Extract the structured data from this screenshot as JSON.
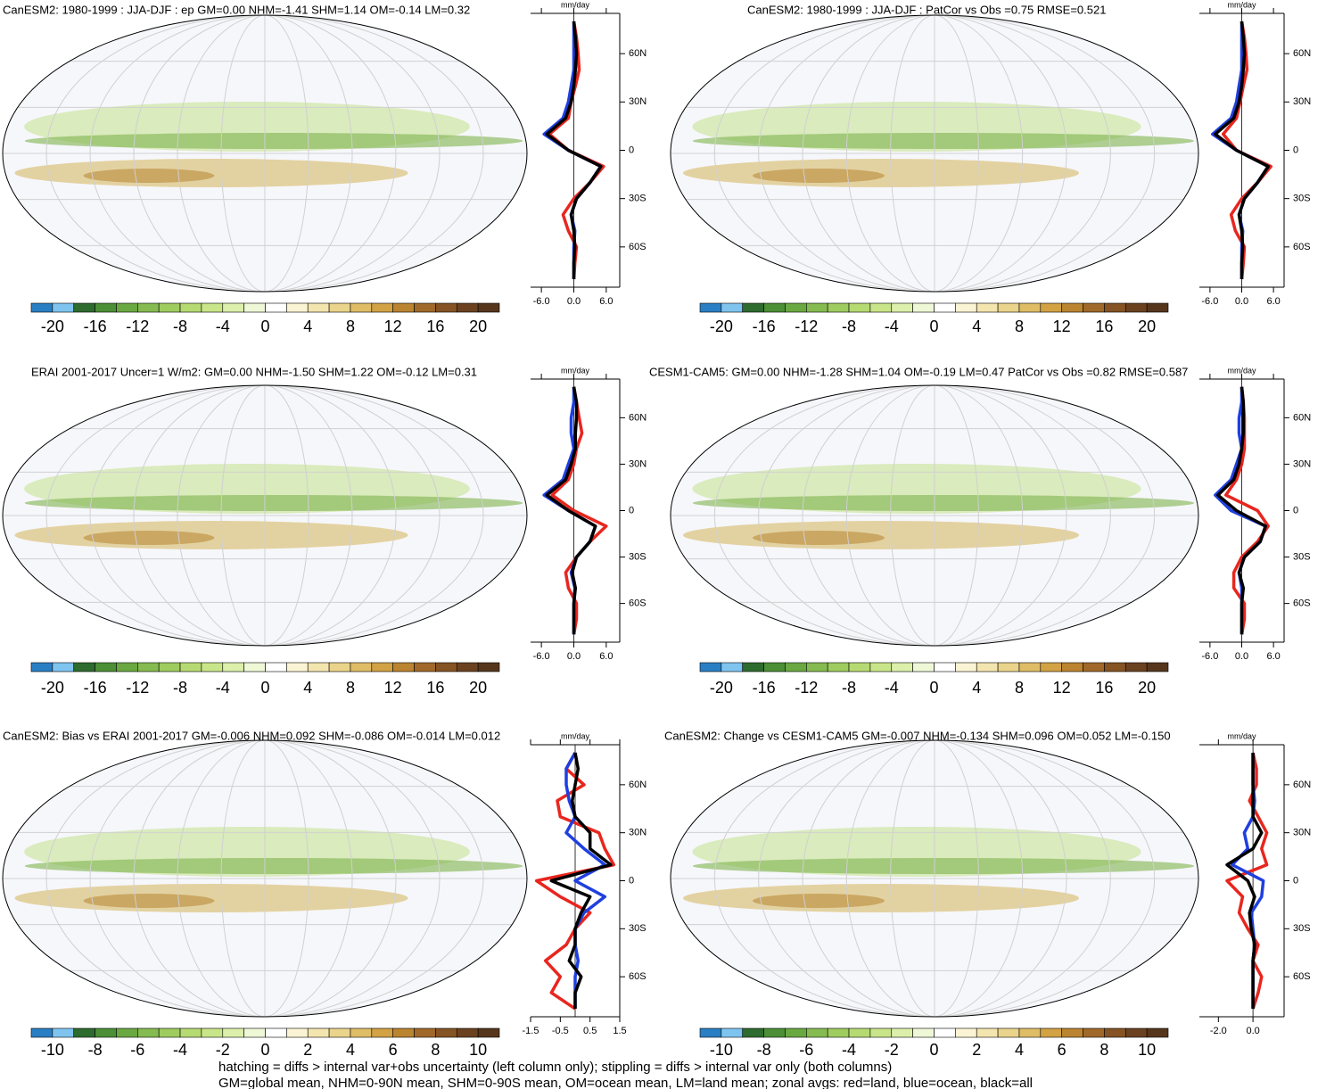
{
  "chart_data": [
    {
      "type": "map-zonal",
      "title": "CanESM2: 1980-1999 : JJA-DJF : ep GM=0.00 NHM=-1.41 SHM=1.14 OM=-0.14 LM=0.32",
      "unit": "mm/day",
      "lat": [
        -80,
        -70,
        -60,
        -50,
        -40,
        -30,
        -20,
        -10,
        0,
        10,
        20,
        30,
        40,
        50,
        60,
        70,
        80
      ],
      "xlim": [
        -8,
        8.5
      ],
      "ylim": [
        -85,
        85
      ],
      "xticks": [
        {
          "value": -6,
          "label": "-6.0"
        },
        {
          "value": 0,
          "label": "0.0"
        },
        {
          "value": 6,
          "label": "6.0"
        }
      ],
      "yticks": [
        {
          "value": -60,
          "label": "60S"
        },
        {
          "value": -30,
          "label": "30S"
        },
        0,
        {
          "value": 30,
          "label": "30N"
        },
        {
          "value": 60,
          "label": "60N"
        }
      ],
      "series": [
        {
          "color": "#e8261e",
          "values": [
            0,
            0.2,
            0.5,
            -1,
            -2,
            0,
            3,
            5.5,
            -1,
            -4.5,
            -1,
            -0.5,
            0.3,
            1,
            0.8,
            0.5,
            0
          ]
        },
        {
          "color": "#1f3fe0",
          "values": [
            0,
            0,
            0,
            0.2,
            -0.5,
            0.5,
            3,
            5,
            -1,
            -5.5,
            -2,
            -1,
            -0.5,
            0,
            0,
            0,
            0
          ]
        },
        {
          "color": "#000000",
          "values": [
            0,
            0,
            0.2,
            0,
            -0.5,
            0.5,
            3,
            5,
            -1,
            -5,
            -1.5,
            -0.5,
            0,
            0.3,
            0.5,
            0.3,
            0
          ]
        }
      ],
      "clim": [
        -22,
        22
      ],
      "cticks": [
        -20,
        -16,
        -12,
        -8,
        -4,
        0,
        4,
        8,
        12,
        16,
        20
      ],
      "colors": [
        "#2a7fc4",
        "#7fc4ef",
        "#2e6b2e",
        "#4c8f36",
        "#6aa842",
        "#85bb50",
        "#9fcc5f",
        "#b6da72",
        "#c9e58a",
        "#dcefab",
        "#eef7d6",
        "#ffffff",
        "#fbf4d4",
        "#f3e5ae",
        "#ead38a",
        "#dfbc66",
        "#d2a244",
        "#bb8430",
        "#a0692a",
        "#855324",
        "#6b4220",
        "#55361c"
      ]
    },
    {
      "type": "map-zonal",
      "title": "CanESM2: 1980-1999 : JJA-DJF : PatCor vs Obs =0.75 RMSE=0.521",
      "unit": "mm/day",
      "lat": [
        -80,
        -70,
        -60,
        -50,
        -40,
        -30,
        -20,
        -10,
        0,
        10,
        20,
        30,
        40,
        50,
        60,
        70,
        80
      ],
      "xlim": [
        -8,
        8
      ],
      "ylim": [
        -85,
        85
      ],
      "xticks": [
        {
          "value": -6,
          "label": "-6.0"
        },
        {
          "value": 0,
          "label": "0.0"
        },
        {
          "value": 6,
          "label": "6.0"
        }
      ],
      "yticks": [
        {
          "value": -60,
          "label": "60S"
        },
        {
          "value": -30,
          "label": "30S"
        },
        0,
        {
          "value": 30,
          "label": "30N"
        },
        {
          "value": 60,
          "label": "60N"
        }
      ],
      "series": [
        {
          "color": "#e8261e",
          "values": [
            0,
            0.3,
            0.5,
            -1.2,
            -2,
            0,
            3,
            5.5,
            -1,
            -3.5,
            -1,
            -0.3,
            0.3,
            1,
            0.8,
            0.5,
            0
          ]
        },
        {
          "color": "#1f3fe0",
          "values": [
            0,
            0,
            0,
            0.2,
            -0.5,
            0.5,
            3,
            5,
            -1,
            -5.5,
            -2,
            -1,
            -0.5,
            0,
            0,
            0,
            0
          ]
        },
        {
          "color": "#000000",
          "values": [
            0,
            0,
            0.2,
            0,
            -0.5,
            0.5,
            3,
            5,
            -1,
            -5,
            -1.5,
            -0.5,
            0,
            0.3,
            0.5,
            0.3,
            0
          ]
        }
      ],
      "clim": [
        -22,
        22
      ],
      "cticks": [
        -20,
        -16,
        -12,
        -8,
        -4,
        0,
        4,
        8,
        12,
        16,
        20
      ],
      "colors": [
        "#2a7fc4",
        "#7fc4ef",
        "#2e6b2e",
        "#4c8f36",
        "#6aa842",
        "#85bb50",
        "#9fcc5f",
        "#b6da72",
        "#c9e58a",
        "#dcefab",
        "#eef7d6",
        "#ffffff",
        "#fbf4d4",
        "#f3e5ae",
        "#ead38a",
        "#dfbc66",
        "#d2a244",
        "#bb8430",
        "#a0692a",
        "#855324",
        "#6b4220",
        "#55361c"
      ]
    },
    {
      "type": "map-zonal",
      "title": "ERAI 2001-2017 Uncer=1 W/m2: GM=0.00 NHM=-1.50 SHM=1.22 OM=-0.12 LM=0.31",
      "unit": "mm/day",
      "lat": [
        -80,
        -70,
        -60,
        -50,
        -40,
        -30,
        -20,
        -10,
        0,
        10,
        20,
        30,
        40,
        50,
        60,
        70,
        80
      ],
      "xlim": [
        -8,
        8.5
      ],
      "ylim": [
        -85,
        85
      ],
      "xticks": [
        {
          "value": -6,
          "label": "-6.0"
        },
        {
          "value": 0,
          "label": "0.0"
        },
        {
          "value": 6,
          "label": "6.0"
        }
      ],
      "yticks": [
        {
          "value": -60,
          "label": "60S"
        },
        {
          "value": -30,
          "label": "30S"
        },
        0,
        {
          "value": 30,
          "label": "30N"
        },
        {
          "value": 60,
          "label": "60N"
        }
      ],
      "series": [
        {
          "color": "#e8261e",
          "values": [
            0,
            0.5,
            0.5,
            -1,
            -1.5,
            0.5,
            3,
            6,
            0,
            -4,
            -1,
            0,
            0.5,
            1.5,
            1,
            0.5,
            0
          ]
        },
        {
          "color": "#1f3fe0",
          "values": [
            0,
            0,
            0,
            0.2,
            -0.5,
            0.5,
            3,
            4,
            -1,
            -5.5,
            -2,
            -1,
            0,
            -0.5,
            -0.5,
            0,
            0
          ]
        },
        {
          "color": "#000000",
          "values": [
            0,
            0,
            0,
            0.3,
            -0.3,
            0.5,
            3,
            4,
            -1,
            -5,
            -1.5,
            -0.5,
            0.3,
            0.3,
            0.5,
            0.5,
            0
          ]
        }
      ],
      "clim": [
        -22,
        22
      ],
      "cticks": [
        -20,
        -16,
        -12,
        -8,
        -4,
        0,
        4,
        8,
        12,
        16,
        20
      ],
      "colors": [
        "#2a7fc4",
        "#7fc4ef",
        "#2e6b2e",
        "#4c8f36",
        "#6aa842",
        "#85bb50",
        "#9fcc5f",
        "#b6da72",
        "#c9e58a",
        "#dcefab",
        "#eef7d6",
        "#ffffff",
        "#fbf4d4",
        "#f3e5ae",
        "#ead38a",
        "#dfbc66",
        "#d2a244",
        "#bb8430",
        "#a0692a",
        "#855324",
        "#6b4220",
        "#55361c"
      ]
    },
    {
      "type": "map-zonal",
      "title": "CESM1-CAM5: GM=0.00 NHM=-1.28 SHM=1.04 OM=-0.19 LM=0.47 PatCor vs Obs =0.82 RMSE=0.587",
      "unit": "mm/day",
      "lat": [
        -80,
        -70,
        -60,
        -50,
        -40,
        -30,
        -20,
        -10,
        0,
        10,
        20,
        30,
        40,
        50,
        60,
        70,
        80
      ],
      "xlim": [
        -8,
        8
      ],
      "ylim": [
        -85,
        85
      ],
      "xticks": [
        {
          "value": -6,
          "label": "-6.0"
        },
        {
          "value": 0,
          "label": "0.0"
        },
        {
          "value": 6,
          "label": "6.0"
        }
      ],
      "yticks": [
        {
          "value": -60,
          "label": "60S"
        },
        {
          "value": -30,
          "label": "30S"
        },
        0,
        {
          "value": 30,
          "label": "30N"
        },
        {
          "value": 60,
          "label": "60N"
        }
      ],
      "series": [
        {
          "color": "#e8261e",
          "values": [
            0,
            0.5,
            0.5,
            -1.5,
            -1.5,
            0,
            3,
            5,
            3,
            -3,
            -1,
            0,
            0.5,
            0.5,
            0.5,
            0.3,
            0
          ]
        },
        {
          "color": "#1f3fe0",
          "values": [
            0,
            0,
            0,
            0,
            -0.5,
            0.5,
            3.5,
            4.5,
            -2,
            -5,
            -2,
            -1,
            0,
            -0.5,
            -0.5,
            0,
            0
          ]
        },
        {
          "color": "#000000",
          "values": [
            0,
            0,
            0,
            0.3,
            -0.5,
            0.5,
            3.5,
            4.5,
            -1,
            -4.5,
            -1.5,
            -0.5,
            0,
            0.3,
            0.3,
            0.3,
            0
          ]
        }
      ],
      "clim": [
        -22,
        22
      ],
      "cticks": [
        -20,
        -16,
        -12,
        -8,
        -4,
        0,
        4,
        8,
        12,
        16,
        20
      ],
      "colors": [
        "#2a7fc4",
        "#7fc4ef",
        "#2e6b2e",
        "#4c8f36",
        "#6aa842",
        "#85bb50",
        "#9fcc5f",
        "#b6da72",
        "#c9e58a",
        "#dcefab",
        "#eef7d6",
        "#ffffff",
        "#fbf4d4",
        "#f3e5ae",
        "#ead38a",
        "#dfbc66",
        "#d2a244",
        "#bb8430",
        "#a0692a",
        "#855324",
        "#6b4220",
        "#55361c"
      ]
    },
    {
      "type": "map-zonal",
      "title": "CanESM2: Bias vs ERAI 2001-2017 GM=-0.006 NHM=0.092 SHM=-0.086 OM=-0.014 LM=0.012",
      "unit": "mm/day",
      "lat": [
        -80,
        -70,
        -60,
        -50,
        -40,
        -30,
        -20,
        -10,
        0,
        10,
        20,
        30,
        40,
        50,
        60,
        70,
        80
      ],
      "xlim": [
        -1.5,
        1.5
      ],
      "ylim": [
        -85,
        85
      ],
      "xticks": [
        -1.5,
        -0.5,
        0.5,
        1.5
      ],
      "yticks": [
        {
          "value": -60,
          "label": "60S"
        },
        {
          "value": -30,
          "label": "30S"
        },
        0,
        {
          "value": 30,
          "label": "30N"
        },
        {
          "value": 60,
          "label": "60N"
        }
      ],
      "series": [
        {
          "color": "#e8261e",
          "values": [
            0,
            -0.8,
            -0.5,
            -1,
            -0.3,
            0,
            0.5,
            -0.5,
            -1.3,
            1.3,
            1,
            0.8,
            -0.5,
            -0.6,
            0.3,
            -0.3,
            0
          ]
        },
        {
          "color": "#1f3fe0",
          "values": [
            0,
            0,
            0,
            0.1,
            0,
            0,
            0.3,
            1,
            0,
            1,
            0.3,
            -0.3,
            0,
            -0.2,
            -0.3,
            -0.3,
            0
          ]
        },
        {
          "color": "#000000",
          "values": [
            0,
            0,
            0.2,
            -0.2,
            0,
            0,
            0.2,
            0.5,
            -0.8,
            1.2,
            0.5,
            0.5,
            0,
            -0.1,
            0,
            0.1,
            0
          ]
        }
      ],
      "clim": [
        -11,
        11
      ],
      "cticks": [
        -10,
        -8,
        -6,
        -4,
        -2,
        0,
        2,
        4,
        6,
        8,
        10
      ],
      "colors": [
        "#2a7fc4",
        "#7fc4ef",
        "#2e6b2e",
        "#4c8f36",
        "#6aa842",
        "#85bb50",
        "#9fcc5f",
        "#b6da72",
        "#c9e58a",
        "#dcefab",
        "#eef7d6",
        "#ffffff",
        "#fbf4d4",
        "#f3e5ae",
        "#ead38a",
        "#dfbc66",
        "#d2a244",
        "#bb8430",
        "#a0692a",
        "#855324",
        "#6b4220",
        "#55361c"
      ]
    },
    {
      "type": "map-zonal",
      "title": "CanESM2: Change vs CESM1-CAM5 GM=-0.007 NHM=-0.134 SHM=0.096 OM=0.052 LM=-0.150",
      "unit": "mm/day",
      "lat": [
        -80,
        -70,
        -60,
        -50,
        -40,
        -30,
        -20,
        -10,
        0,
        10,
        20,
        30,
        40,
        50,
        60,
        70,
        80
      ],
      "xlim": [
        -3.1,
        1.8
      ],
      "ylim": [
        -85,
        85
      ],
      "xticks": [
        {
          "value": -2,
          "label": "-2.0"
        },
        {
          "value": 0,
          "label": "0.0"
        }
      ],
      "yticks": [
        {
          "value": -60,
          "label": "60S"
        },
        {
          "value": -30,
          "label": "30S"
        },
        0,
        {
          "value": 30,
          "label": "30N"
        },
        {
          "value": 60,
          "label": "60N"
        }
      ],
      "series": [
        {
          "color": "#e8261e",
          "values": [
            0,
            0.3,
            0.5,
            0,
            0.3,
            -0.3,
            -0.8,
            -0.6,
            -1.5,
            0.8,
            0.5,
            0.8,
            0.3,
            -0.2,
            0.2,
            0.2,
            0
          ]
        },
        {
          "color": "#1f3fe0",
          "values": [
            0,
            0,
            0,
            0,
            0.1,
            0,
            -0.1,
            0.5,
            0.6,
            -1.2,
            -0.3,
            -0.5,
            0,
            0.1,
            0,
            0,
            0
          ]
        },
        {
          "color": "#000000",
          "values": [
            0,
            0,
            0,
            0,
            0.1,
            -0.1,
            -0.2,
            0.1,
            -0.3,
            -1.5,
            0,
            0.5,
            0,
            0,
            0,
            0,
            0
          ]
        }
      ],
      "clim": [
        -11,
        11
      ],
      "cticks": [
        -10,
        -8,
        -6,
        -4,
        -2,
        0,
        2,
        4,
        6,
        8,
        10
      ],
      "colors": [
        "#2a7fc4",
        "#7fc4ef",
        "#2e6b2e",
        "#4c8f36",
        "#6aa842",
        "#85bb50",
        "#9fcc5f",
        "#b6da72",
        "#c9e58a",
        "#dcefab",
        "#eef7d6",
        "#ffffff",
        "#fbf4d4",
        "#f3e5ae",
        "#ead38a",
        "#dfbc66",
        "#d2a244",
        "#bb8430",
        "#a0692a",
        "#855324",
        "#6b4220",
        "#55361c"
      ]
    }
  ],
  "footer": [
    "hatching = diffs > internal var+obs uncertainty (left column only); stippling = diffs > internal var only (both columns)",
    "GM=global mean, NHM=0-90N mean, SHM=0-90S mean, OM=ocean mean, LM=land mean; zonal avgs: red=land, blue=ocean, black=all"
  ]
}
